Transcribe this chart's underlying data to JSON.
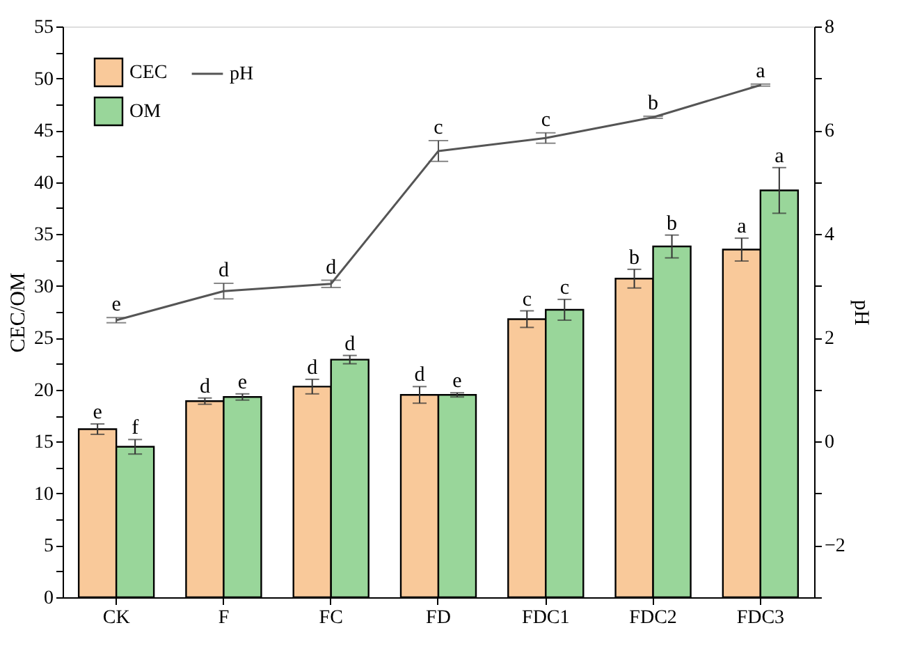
{
  "chart_data": {
    "type": "bar",
    "ylabel": "CEC/OM",
    "y2label": "pH",
    "categories": [
      "CK",
      "F",
      "FC",
      "FD",
      "FDC1",
      "FDC2",
      "FDC3"
    ],
    "series": [
      {
        "name": "CEC",
        "color": "#f9c99a",
        "values": [
          16.2,
          18.9,
          20.3,
          19.5,
          26.8,
          30.7,
          33.5
        ],
        "errors": [
          0.5,
          0.3,
          0.7,
          0.8,
          0.8,
          0.9,
          1.1
        ],
        "value_labels": [
          "e",
          "d",
          "d",
          "d",
          "c",
          "b",
          "a"
        ]
      },
      {
        "name": "OM",
        "color": "#99d69a",
        "values": [
          14.5,
          19.3,
          22.9,
          19.5,
          27.7,
          33.8,
          39.2
        ],
        "errors": [
          0.7,
          0.3,
          0.4,
          0.2,
          1.0,
          1.1,
          2.2
        ],
        "value_labels": [
          "f",
          "e",
          "d",
          "e",
          "c",
          "b",
          "a"
        ]
      },
      {
        "name": "pH",
        "type": "line",
        "axis": "y2",
        "color": "#555555",
        "values": [
          2.34,
          2.9,
          3.04,
          5.6,
          5.85,
          6.25,
          6.87
        ],
        "errors": [
          0.05,
          0.15,
          0.07,
          0.2,
          0.1,
          0.02,
          0.02
        ],
        "value_labels": [
          "e",
          "d",
          "d",
          "c",
          "c",
          "b",
          "a"
        ]
      }
    ],
    "ylim": [
      0,
      55
    ],
    "yticks": [
      0,
      {
        "value": 2.5,
        "label": null
      },
      5,
      {
        "value": 7.5,
        "label": null
      },
      10,
      {
        "value": 12.5,
        "label": null
      },
      15,
      {
        "value": 17.5,
        "label": null
      },
      20,
      {
        "value": 22.5,
        "label": null
      },
      25,
      {
        "value": 27.5,
        "label": null
      },
      30,
      {
        "value": 32.5,
        "label": null
      },
      35,
      {
        "value": 37.5,
        "label": null
      },
      40,
      {
        "value": 42.5,
        "label": null
      },
      45,
      {
        "value": 47.5,
        "label": null
      },
      50,
      {
        "value": 52.5,
        "label": null
      },
      55
    ],
    "y2lim": [
      -3,
      8
    ],
    "y2ticks": [
      {
        "value": -3,
        "label": null
      },
      -2,
      {
        "value": -1,
        "label": null
      },
      0,
      {
        "value": 1,
        "label": null
      },
      2,
      {
        "value": 3,
        "label": null
      },
      4,
      {
        "value": 5,
        "label": null
      },
      6,
      {
        "value": 7,
        "label": null
      },
      8
    ],
    "legend": "top left",
    "grid": false
  }
}
